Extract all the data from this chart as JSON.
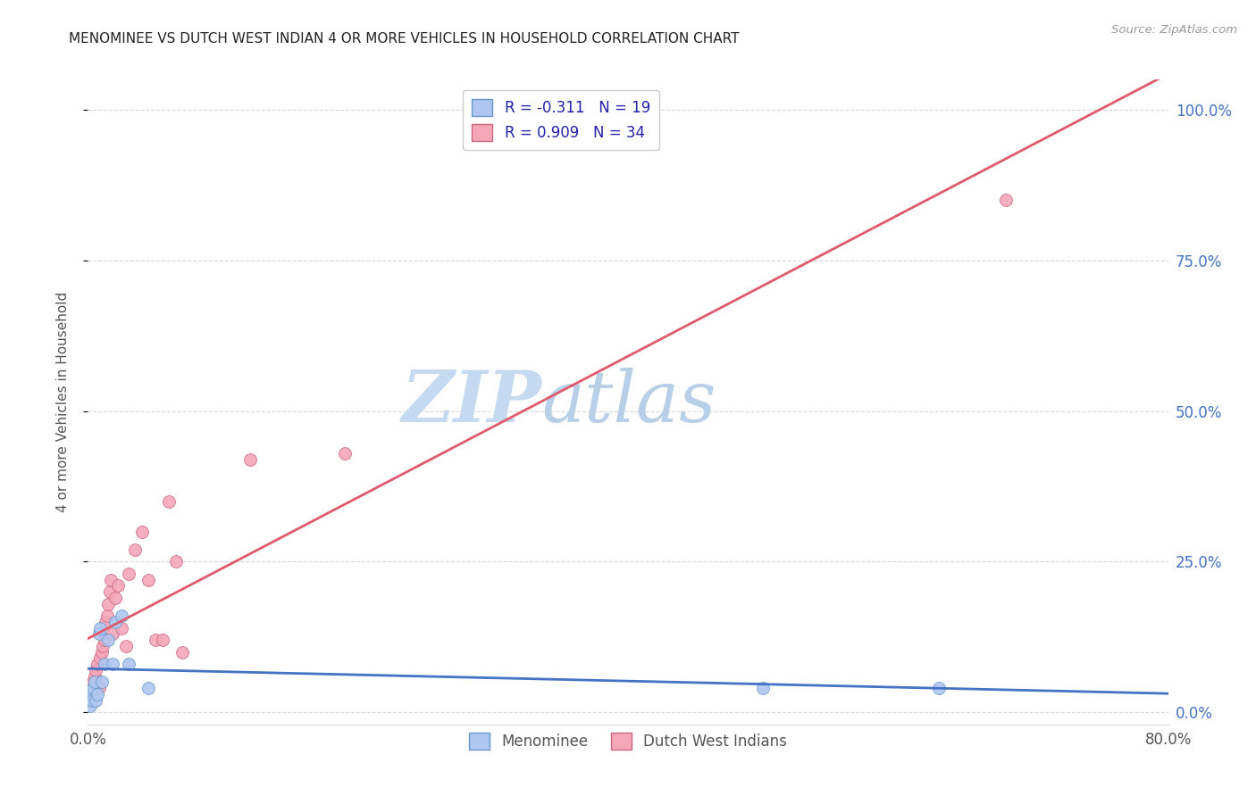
{
  "title": "MENOMINEE VS DUTCH WEST INDIAN 4 OR MORE VEHICLES IN HOUSEHOLD CORRELATION CHART",
  "source": "Source: ZipAtlas.com",
  "ylabel": "4 or more Vehicles in Household",
  "xmin": 0.0,
  "xmax": 0.8,
  "ymin": -0.02,
  "ymax": 1.05,
  "xticks": [
    0.0,
    0.1,
    0.2,
    0.3,
    0.4,
    0.5,
    0.6,
    0.7,
    0.8
  ],
  "xticklabels": [
    "0.0%",
    "",
    "",
    "",
    "",
    "",
    "",
    "",
    "80.0%"
  ],
  "yticks": [
    0.0,
    0.25,
    0.5,
    0.75,
    1.0
  ],
  "yticklabels_right": [
    "0.0%",
    "25.0%",
    "50.0%",
    "75.0%",
    "100.0%"
  ],
  "legend_entries": [
    {
      "label": "R = -0.311   N = 19",
      "color": "#aec6f0",
      "edgecolor": "#6699cc"
    },
    {
      "label": "R = 0.909   N = 34",
      "color": "#f4a7b9",
      "edgecolor": "#cc6680"
    }
  ],
  "menominee_x": [
    0.001,
    0.002,
    0.003,
    0.004,
    0.005,
    0.006,
    0.007,
    0.008,
    0.009,
    0.01,
    0.012,
    0.015,
    0.018,
    0.02,
    0.025,
    0.03,
    0.045,
    0.5,
    0.63
  ],
  "menominee_y": [
    0.03,
    0.01,
    0.02,
    0.04,
    0.05,
    0.02,
    0.03,
    0.13,
    0.14,
    0.05,
    0.08,
    0.12,
    0.08,
    0.15,
    0.16,
    0.08,
    0.04,
    0.04,
    0.04
  ],
  "dutch_x": [
    0.001,
    0.002,
    0.003,
    0.004,
    0.005,
    0.006,
    0.007,
    0.008,
    0.009,
    0.01,
    0.011,
    0.012,
    0.013,
    0.014,
    0.015,
    0.016,
    0.017,
    0.018,
    0.02,
    0.022,
    0.025,
    0.028,
    0.03,
    0.035,
    0.04,
    0.045,
    0.05,
    0.055,
    0.06,
    0.065,
    0.07,
    0.12,
    0.19,
    0.68
  ],
  "dutch_y": [
    0.02,
    0.03,
    0.04,
    0.05,
    0.06,
    0.07,
    0.08,
    0.04,
    0.09,
    0.1,
    0.11,
    0.12,
    0.15,
    0.16,
    0.18,
    0.2,
    0.22,
    0.13,
    0.19,
    0.21,
    0.14,
    0.11,
    0.23,
    0.27,
    0.3,
    0.22,
    0.12,
    0.12,
    0.35,
    0.25,
    0.1,
    0.42,
    0.43,
    0.85
  ],
  "menominee_color": "#aec6f0",
  "menominee_edge": "#6699cc",
  "dutch_color": "#f4a7b9",
  "dutch_edge": "#cc6680",
  "menominee_line_color": "#4472c4",
  "dutch_line_color": "#e05a6e",
  "watermark_zip": "ZIP",
  "watermark_atlas": "atlas",
  "watermark_color_zip": "#c8dff5",
  "watermark_color_atlas": "#b0cce8",
  "watermark_fontsize": 58,
  "legend_labels_bottom": [
    "Menominee",
    "Dutch West Indians"
  ],
  "marker_size": 100,
  "grid_color": "#d8d8d8",
  "title_color": "#222222",
  "label_color": "#555555",
  "right_axis_color": "#4472c4",
  "source_color": "#999999"
}
